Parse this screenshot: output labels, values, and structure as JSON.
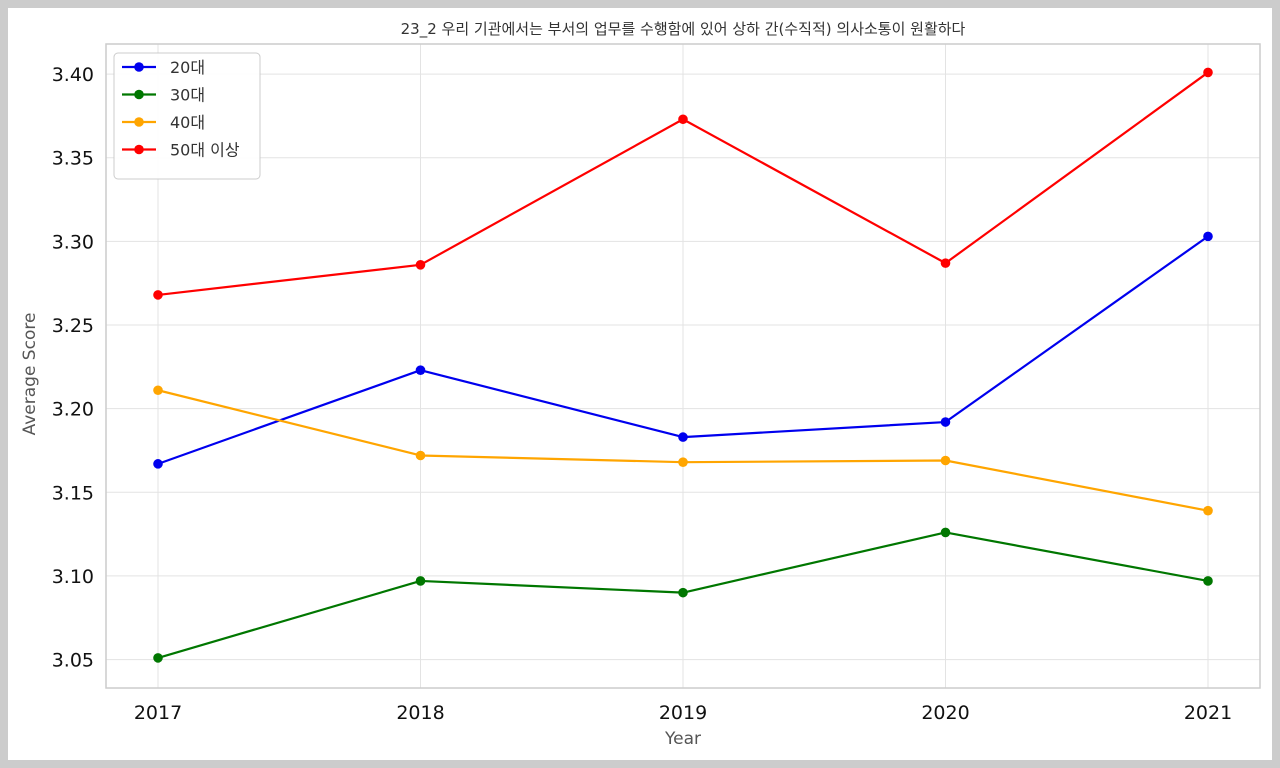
{
  "chart_data": {
    "type": "line",
    "title": "23_2 우리 기관에서는 부서의 업무를 수행함에 있어 상하 간(수직적) 의사소통이 원활하다",
    "xlabel": "Year",
    "ylabel": "Average Score",
    "x": [
      "2017",
      "2018",
      "2019",
      "2020",
      "2021"
    ],
    "ylim": [
      3.033,
      3.418
    ],
    "yticks": [
      "3.05",
      "3.10",
      "3.15",
      "3.20",
      "3.25",
      "3.30",
      "3.35",
      "3.40"
    ],
    "grid": true,
    "legend_position": "top-left",
    "series": [
      {
        "name": "20대",
        "color": "#0000ee",
        "values": [
          3.167,
          3.223,
          3.183,
          3.192,
          3.303
        ]
      },
      {
        "name": "30대",
        "color": "#007700",
        "values": [
          3.051,
          3.097,
          3.09,
          3.126,
          3.097
        ]
      },
      {
        "name": "40대",
        "color": "#ffa500",
        "values": [
          3.211,
          3.172,
          3.168,
          3.169,
          3.139
        ]
      },
      {
        "name": "50대 이상",
        "color": "#ff0000",
        "values": [
          3.268,
          3.286,
          3.373,
          3.287,
          3.401
        ]
      }
    ]
  }
}
